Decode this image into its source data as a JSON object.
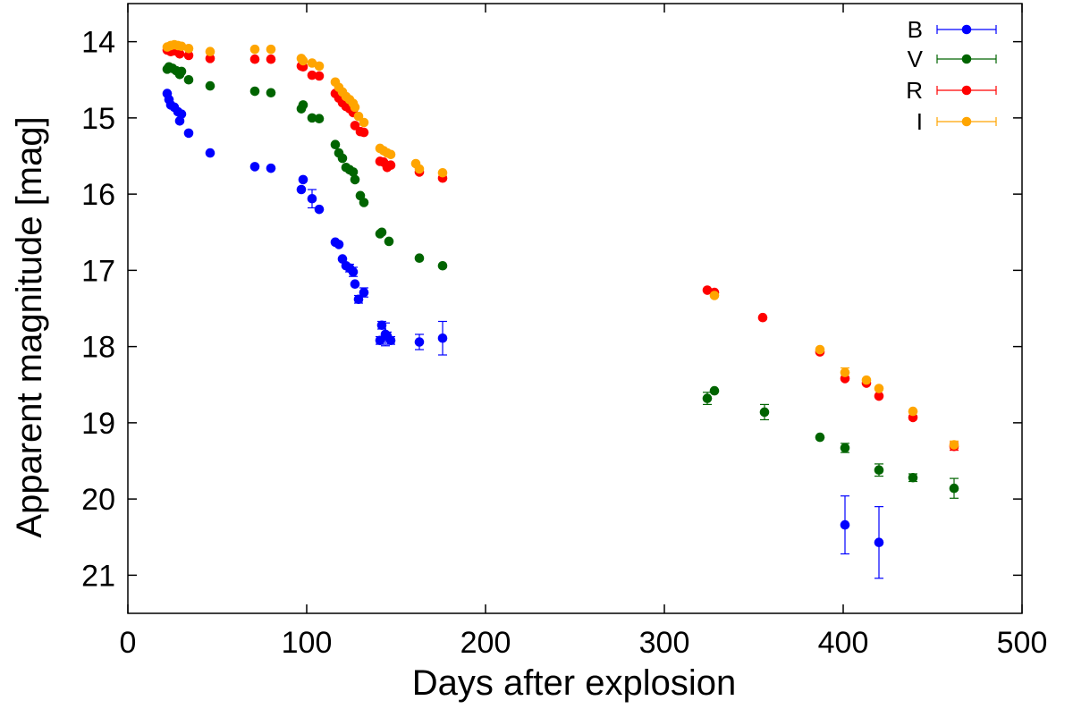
{
  "chart_data": {
    "type": "scatter",
    "xlabel": "Days after explosion",
    "ylabel": "Apparent magnitude [mag]",
    "xlim": [
      0,
      500
    ],
    "ylim": [
      21.5,
      13.5
    ],
    "y_inverted": true,
    "xticks": [
      0,
      100,
      200,
      300,
      400,
      500
    ],
    "yticks": [
      14,
      15,
      16,
      17,
      18,
      19,
      20,
      21
    ],
    "grid": false,
    "legend_position": "top-right",
    "series": [
      {
        "name": "B",
        "color": "#0000ff",
        "points": [
          {
            "x": 22,
            "y": 14.68,
            "err": 0.03
          },
          {
            "x": 23,
            "y": 14.76,
            "err": 0.03
          },
          {
            "x": 24,
            "y": 14.83,
            "err": 0.03
          },
          {
            "x": 26,
            "y": 14.86,
            "err": 0.03
          },
          {
            "x": 28,
            "y": 14.92,
            "err": 0.03
          },
          {
            "x": 29,
            "y": 15.04,
            "err": 0.03
          },
          {
            "x": 30,
            "y": 14.95,
            "err": 0.03
          },
          {
            "x": 34,
            "y": 15.2,
            "err": 0.03
          },
          {
            "x": 46,
            "y": 15.46,
            "err": 0.03
          },
          {
            "x": 71,
            "y": 15.64,
            "err": 0.03
          },
          {
            "x": 80,
            "y": 15.66,
            "err": 0.03
          },
          {
            "x": 97,
            "y": 15.94,
            "err": 0.04
          },
          {
            "x": 98,
            "y": 15.81,
            "err": 0.04
          },
          {
            "x": 103,
            "y": 16.06,
            "err": 0.12
          },
          {
            "x": 107,
            "y": 16.2,
            "err": 0.04
          },
          {
            "x": 116,
            "y": 16.63,
            "err": 0.04
          },
          {
            "x": 118,
            "y": 16.66,
            "err": 0.04
          },
          {
            "x": 120,
            "y": 16.85,
            "err": 0.04
          },
          {
            "x": 122,
            "y": 16.94,
            "err": 0.04
          },
          {
            "x": 124,
            "y": 16.97,
            "err": 0.05
          },
          {
            "x": 126,
            "y": 17.02,
            "err": 0.06
          },
          {
            "x": 127,
            "y": 17.18,
            "err": 0.04
          },
          {
            "x": 129,
            "y": 17.38,
            "err": 0.05
          },
          {
            "x": 132,
            "y": 17.29,
            "err": 0.06
          },
          {
            "x": 141,
            "y": 17.92,
            "err": 0.05
          },
          {
            "x": 142,
            "y": 17.72,
            "err": 0.05
          },
          {
            "x": 144,
            "y": 17.84,
            "err": 0.15
          },
          {
            "x": 145,
            "y": 17.86,
            "err": 0.05
          },
          {
            "x": 147,
            "y": 17.92,
            "err": 0.05
          },
          {
            "x": 163,
            "y": 17.94,
            "err": 0.1
          },
          {
            "x": 176,
            "y": 17.89,
            "err": 0.22
          },
          {
            "x": 401,
            "y": 20.34,
            "err": 0.38
          },
          {
            "x": 420,
            "y": 20.57,
            "err": 0.47
          }
        ]
      },
      {
        "name": "V",
        "color": "#006400",
        "points": [
          {
            "x": 22,
            "y": 14.36,
            "err": 0.02
          },
          {
            "x": 23,
            "y": 14.33,
            "err": 0.02
          },
          {
            "x": 25,
            "y": 14.35,
            "err": 0.02
          },
          {
            "x": 27,
            "y": 14.38,
            "err": 0.02
          },
          {
            "x": 29,
            "y": 14.43,
            "err": 0.02
          },
          {
            "x": 30,
            "y": 14.39,
            "err": 0.02
          },
          {
            "x": 34,
            "y": 14.5,
            "err": 0.02
          },
          {
            "x": 46,
            "y": 14.58,
            "err": 0.02
          },
          {
            "x": 71,
            "y": 14.65,
            "err": 0.02
          },
          {
            "x": 80,
            "y": 14.67,
            "err": 0.02
          },
          {
            "x": 97,
            "y": 14.88,
            "err": 0.03
          },
          {
            "x": 98,
            "y": 14.83,
            "err": 0.03
          },
          {
            "x": 103,
            "y": 15.0,
            "err": 0.03
          },
          {
            "x": 107,
            "y": 15.01,
            "err": 0.03
          },
          {
            "x": 116,
            "y": 15.35,
            "err": 0.03
          },
          {
            "x": 118,
            "y": 15.46,
            "err": 0.03
          },
          {
            "x": 120,
            "y": 15.53,
            "err": 0.03
          },
          {
            "x": 122,
            "y": 15.65,
            "err": 0.03
          },
          {
            "x": 124,
            "y": 15.68,
            "err": 0.03
          },
          {
            "x": 126,
            "y": 15.71,
            "err": 0.04
          },
          {
            "x": 127,
            "y": 15.81,
            "err": 0.03
          },
          {
            "x": 130,
            "y": 16.02,
            "err": 0.03
          },
          {
            "x": 132,
            "y": 16.11,
            "err": 0.03
          },
          {
            "x": 141,
            "y": 16.52,
            "err": 0.03
          },
          {
            "x": 142,
            "y": 16.5,
            "err": 0.03
          },
          {
            "x": 146,
            "y": 16.62,
            "err": 0.03
          },
          {
            "x": 163,
            "y": 16.84,
            "err": 0.03
          },
          {
            "x": 176,
            "y": 16.94,
            "err": 0.04
          },
          {
            "x": 324,
            "y": 18.68,
            "err": 0.08
          },
          {
            "x": 328,
            "y": 18.58,
            "err": 0.04
          },
          {
            "x": 356,
            "y": 18.86,
            "err": 0.1
          },
          {
            "x": 387,
            "y": 19.19,
            "err": 0.04
          },
          {
            "x": 401,
            "y": 19.33,
            "err": 0.06
          },
          {
            "x": 420,
            "y": 19.62,
            "err": 0.08
          },
          {
            "x": 439,
            "y": 19.72,
            "err": 0.05
          },
          {
            "x": 462,
            "y": 19.86,
            "err": 0.13
          }
        ]
      },
      {
        "name": "R",
        "color": "#ff0000",
        "points": [
          {
            "x": 22,
            "y": 14.11,
            "err": 0.02
          },
          {
            "x": 24,
            "y": 14.13,
            "err": 0.02
          },
          {
            "x": 26,
            "y": 14.12,
            "err": 0.02
          },
          {
            "x": 29,
            "y": 14.16,
            "err": 0.02
          },
          {
            "x": 34,
            "y": 14.18,
            "err": 0.02
          },
          {
            "x": 46,
            "y": 14.22,
            "err": 0.02
          },
          {
            "x": 71,
            "y": 14.23,
            "err": 0.02
          },
          {
            "x": 80,
            "y": 14.23,
            "err": 0.02
          },
          {
            "x": 97,
            "y": 14.32,
            "err": 0.02
          },
          {
            "x": 98,
            "y": 14.33,
            "err": 0.02
          },
          {
            "x": 103,
            "y": 14.44,
            "err": 0.02
          },
          {
            "x": 107,
            "y": 14.45,
            "err": 0.02
          },
          {
            "x": 116,
            "y": 14.68,
            "err": 0.02
          },
          {
            "x": 118,
            "y": 14.74,
            "err": 0.02
          },
          {
            "x": 120,
            "y": 14.8,
            "err": 0.02
          },
          {
            "x": 122,
            "y": 14.85,
            "err": 0.02
          },
          {
            "x": 124,
            "y": 14.88,
            "err": 0.02
          },
          {
            "x": 126,
            "y": 14.93,
            "err": 0.02
          },
          {
            "x": 127,
            "y": 15.1,
            "err": 0.02
          },
          {
            "x": 130,
            "y": 15.18,
            "err": 0.02
          },
          {
            "x": 132,
            "y": 15.19,
            "err": 0.02
          },
          {
            "x": 141,
            "y": 15.57,
            "err": 0.02
          },
          {
            "x": 143,
            "y": 15.58,
            "err": 0.02
          },
          {
            "x": 145,
            "y": 15.65,
            "err": 0.02
          },
          {
            "x": 147,
            "y": 15.62,
            "err": 0.02
          },
          {
            "x": 163,
            "y": 15.71,
            "err": 0.02
          },
          {
            "x": 176,
            "y": 15.79,
            "err": 0.02
          },
          {
            "x": 324,
            "y": 17.26,
            "err": 0.03
          },
          {
            "x": 328,
            "y": 17.29,
            "err": 0.03
          },
          {
            "x": 355,
            "y": 17.62,
            "err": 0.03
          },
          {
            "x": 387,
            "y": 18.07,
            "err": 0.03
          },
          {
            "x": 401,
            "y": 18.42,
            "err": 0.04
          },
          {
            "x": 413,
            "y": 18.48,
            "err": 0.04
          },
          {
            "x": 420,
            "y": 18.65,
            "err": 0.04
          },
          {
            "x": 439,
            "y": 18.93,
            "err": 0.04
          },
          {
            "x": 462,
            "y": 19.31,
            "err": 0.05
          }
        ]
      },
      {
        "name": "I",
        "color": "#ffa500",
        "points": [
          {
            "x": 22,
            "y": 14.07,
            "err": 0.02
          },
          {
            "x": 24,
            "y": 14.05,
            "err": 0.02
          },
          {
            "x": 26,
            "y": 14.04,
            "err": 0.02
          },
          {
            "x": 28,
            "y": 14.05,
            "err": 0.02
          },
          {
            "x": 30,
            "y": 14.06,
            "err": 0.02
          },
          {
            "x": 34,
            "y": 14.09,
            "err": 0.02
          },
          {
            "x": 46,
            "y": 14.13,
            "err": 0.02
          },
          {
            "x": 71,
            "y": 14.1,
            "err": 0.02
          },
          {
            "x": 80,
            "y": 14.1,
            "err": 0.02
          },
          {
            "x": 97,
            "y": 14.22,
            "err": 0.02
          },
          {
            "x": 98,
            "y": 14.25,
            "err": 0.02
          },
          {
            "x": 103,
            "y": 14.28,
            "err": 0.02
          },
          {
            "x": 107,
            "y": 14.32,
            "err": 0.02
          },
          {
            "x": 116,
            "y": 14.53,
            "err": 0.02
          },
          {
            "x": 118,
            "y": 14.6,
            "err": 0.02
          },
          {
            "x": 120,
            "y": 14.66,
            "err": 0.02
          },
          {
            "x": 122,
            "y": 14.72,
            "err": 0.02
          },
          {
            "x": 124,
            "y": 14.76,
            "err": 0.02
          },
          {
            "x": 126,
            "y": 14.81,
            "err": 0.02
          },
          {
            "x": 127,
            "y": 14.86,
            "err": 0.02
          },
          {
            "x": 129,
            "y": 14.98,
            "err": 0.02
          },
          {
            "x": 132,
            "y": 15.06,
            "err": 0.02
          },
          {
            "x": 141,
            "y": 15.4,
            "err": 0.02
          },
          {
            "x": 143,
            "y": 15.43,
            "err": 0.02
          },
          {
            "x": 145,
            "y": 15.46,
            "err": 0.02
          },
          {
            "x": 147,
            "y": 15.48,
            "err": 0.02
          },
          {
            "x": 161,
            "y": 15.6,
            "err": 0.02
          },
          {
            "x": 163,
            "y": 15.67,
            "err": 0.02
          },
          {
            "x": 176,
            "y": 15.72,
            "err": 0.02
          },
          {
            "x": 328,
            "y": 17.33,
            "err": 0.03
          },
          {
            "x": 387,
            "y": 18.04,
            "err": 0.03
          },
          {
            "x": 401,
            "y": 18.34,
            "err": 0.06
          },
          {
            "x": 413,
            "y": 18.44,
            "err": 0.04
          },
          {
            "x": 420,
            "y": 18.55,
            "err": 0.04
          },
          {
            "x": 439,
            "y": 18.85,
            "err": 0.04
          },
          {
            "x": 462,
            "y": 19.29,
            "err": 0.05
          }
        ]
      }
    ]
  }
}
